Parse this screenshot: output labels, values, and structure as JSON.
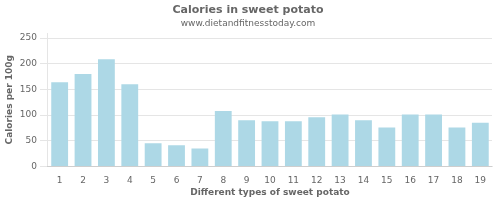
{
  "chart_data": {
    "type": "bar",
    "title": "Calories in sweet potato",
    "subtitle": "www.dietandfitnesstoday.com",
    "xlabel": "Different types of sweet potato",
    "ylabel": "Calories per 100g",
    "categories": [
      1,
      2,
      3,
      4,
      5,
      6,
      7,
      8,
      9,
      10,
      11,
      12,
      13,
      14,
      15,
      16,
      17,
      18,
      19
    ],
    "values": [
      164,
      180,
      209,
      160,
      45,
      41,
      35,
      108,
      90,
      88,
      88,
      96,
      101,
      90,
      76,
      101,
      101,
      76,
      85
    ],
    "color": "#add8e6",
    "ylim": [
      0,
      260
    ],
    "yticks": [
      0,
      50,
      100,
      150,
      200,
      250
    ],
    "grid": true
  }
}
